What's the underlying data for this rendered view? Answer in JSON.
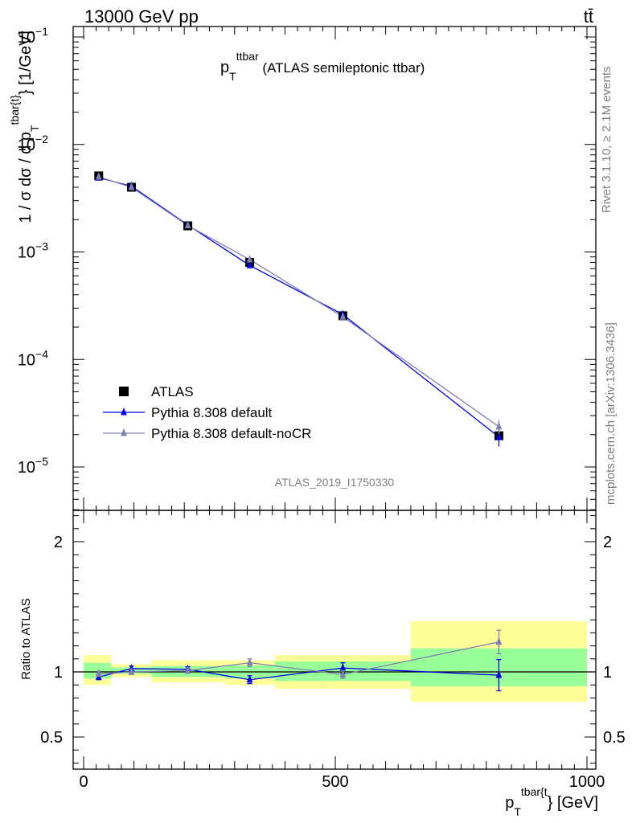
{
  "header": {
    "energy_label": "13000 GeV pp",
    "process_label": "tt̄"
  },
  "side_labels": {
    "rivet": "Rivet 3.1.10, ≥ 2.1M events",
    "mcplots": "mcplots.cern.ch [arXiv:1306.3436]"
  },
  "chart_data": [
    {
      "type": "scatter",
      "panel": "main",
      "title": {
        "main": "p",
        "sub": "T",
        "sup": "ttbar",
        "rest": " (ATLAS semileptonic ttbar)"
      },
      "ylabel": {
        "pre": "1 / σ dσ / d p",
        "sub": "T",
        "sup": "tbar{t}",
        "post": "} [1/GeV]"
      },
      "analysis_id": "ATLAS_2019_I1750330",
      "yscale": "log",
      "xlim": [
        -30,
        1040
      ],
      "ylim": [
        4e-06,
        0.13
      ],
      "y_ticks": [
        {
          "v": 0.1,
          "base": "10",
          "exp": "−1"
        },
        {
          "v": 0.01,
          "base": "10",
          "exp": "−2"
        },
        {
          "v": 0.001,
          "base": "10",
          "exp": "−3"
        },
        {
          "v": 0.0001,
          "base": "10",
          "exp": "−4"
        },
        {
          "v": 1e-05,
          "base": "10",
          "exp": "−5"
        }
      ],
      "legend_position": "bottom-left",
      "series": [
        {
          "name": "ATLAS",
          "color": "#000000",
          "marker": "square",
          "x": [
            30,
            95,
            207,
            330,
            515,
            825
          ],
          "y": [
            0.0051,
            0.004,
            0.00175,
            0.0008,
            0.000255,
            1.95e-05
          ]
        },
        {
          "name": "Pythia 8.308 default",
          "color": "#0000e6",
          "marker": "triangle",
          "x": [
            30,
            95,
            207,
            330,
            515,
            825
          ],
          "y": [
            0.0049,
            0.0041,
            0.00178,
            0.00075,
            0.000262,
            1.9e-05
          ],
          "yerr_low": [
            2e-05,
            2e-05,
            1e-05,
            2e-05,
            4e-06,
            3.5e-06
          ],
          "yerr_high": [
            2e-05,
            2e-05,
            1e-05,
            2e-05,
            4e-06,
            3.5e-06
          ]
        },
        {
          "name": "Pythia 8.308 default-noCR",
          "color": "#7f7fb0",
          "marker": "triangle",
          "x": [
            30,
            95,
            207,
            330,
            515,
            825
          ],
          "y": [
            0.005,
            0.004,
            0.00176,
            0.00085,
            0.000249,
            2.37e-05
          ],
          "yerr_low": [
            2e-05,
            2e-05,
            1e-05,
            2e-05,
            4e-06,
            3.5e-06
          ],
          "yerr_high": [
            2e-05,
            2e-05,
            1e-05,
            2e-05,
            4e-06,
            3.5e-06
          ]
        }
      ]
    },
    {
      "type": "scatter",
      "panel": "ratio",
      "ylabel": "Ratio to ATLAS",
      "xlabel": {
        "pre": "p",
        "sub": "T",
        "sup": "tbar{t",
        "post": "} [GeV]"
      },
      "xlim": [
        -30,
        1040
      ],
      "ylim": [
        0.3,
        2.35
      ],
      "x_ticks": [
        0,
        500,
        1000
      ],
      "y_ticks": [
        0.5,
        1,
        2
      ],
      "reference": 1,
      "bands": [
        {
          "x0": 0,
          "x1": 55,
          "stat": [
            0.95,
            1.07
          ],
          "total": [
            0.9,
            1.13
          ]
        },
        {
          "x0": 55,
          "x1": 135,
          "stat": [
            0.985,
            1.035
          ],
          "total": [
            0.96,
            1.06
          ]
        },
        {
          "x0": 135,
          "x1": 280,
          "stat": [
            0.96,
            1.045
          ],
          "total": [
            0.92,
            1.09
          ]
        },
        {
          "x0": 280,
          "x1": 380,
          "stat": [
            0.95,
            1.05
          ],
          "total": [
            0.9,
            1.09
          ]
        },
        {
          "x0": 380,
          "x1": 650,
          "stat": [
            0.93,
            1.08
          ],
          "total": [
            0.87,
            1.13
          ]
        },
        {
          "x0": 650,
          "x1": 1000,
          "stat": [
            0.89,
            1.18
          ],
          "total": [
            0.77,
            1.39
          ]
        }
      ],
      "series": [
        {
          "name": "Pythia 8.308 default",
          "color": "#0000e6",
          "marker": "triangle",
          "x": [
            30,
            95,
            207,
            330,
            515,
            825
          ],
          "y": [
            0.96,
            1.025,
            1.02,
            0.94,
            1.03,
            0.975
          ],
          "yerr_low": [
            0.02,
            0.02,
            0.02,
            0.03,
            0.04,
            0.12
          ],
          "yerr_high": [
            0.02,
            0.02,
            0.02,
            0.03,
            0.04,
            0.12
          ]
        },
        {
          "name": "Pythia 8.308 default-noCR",
          "color": "#7f7fb0",
          "marker": "triangle",
          "x": [
            30,
            95,
            207,
            330,
            515,
            825
          ],
          "y": [
            0.985,
            1.0,
            1.01,
            1.07,
            0.98,
            1.23
          ],
          "yerr_low": [
            0.02,
            0.02,
            0.02,
            0.03,
            0.03,
            0.09
          ],
          "yerr_high": [
            0.02,
            0.02,
            0.02,
            0.03,
            0.03,
            0.09
          ]
        }
      ]
    }
  ]
}
